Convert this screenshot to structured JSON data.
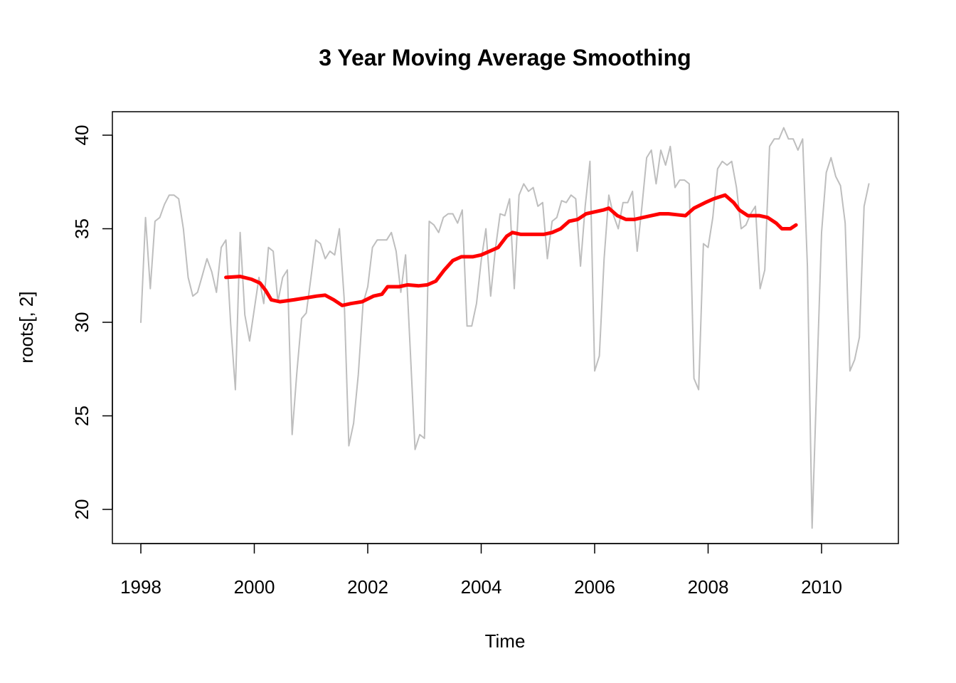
{
  "chart_data": {
    "type": "line",
    "title": "3 Year Moving Average Smoothing",
    "xlabel": "Time",
    "ylabel": "roots[, 2]",
    "xlim": [
      1998,
      2010.9
    ],
    "ylim": [
      19,
      40.3
    ],
    "x_ticks": [
      1998,
      2000,
      2002,
      2004,
      2006,
      2008,
      2010
    ],
    "y_ticks": [
      20,
      25,
      30,
      35,
      40
    ],
    "grid": false,
    "series": [
      {
        "name": "",
        "color": "#bebebe",
        "start": 1998.0,
        "step": 0.0833333,
        "values": [
          30.0,
          35.6,
          31.8,
          35.4,
          35.6,
          36.3,
          36.8,
          36.8,
          36.6,
          35.0,
          32.4,
          31.4,
          31.6,
          32.5,
          33.4,
          32.7,
          31.6,
          34.0,
          34.4,
          29.9,
          26.4,
          34.8,
          30.4,
          29.0,
          30.7,
          32.4,
          31.0,
          34.0,
          33.8,
          31.1,
          32.4,
          32.8,
          24.0,
          27.3,
          30.2,
          30.5,
          32.4,
          34.4,
          34.2,
          33.4,
          33.8,
          33.6,
          35.0,
          31.3,
          23.4,
          24.6,
          27.2,
          31.0,
          31.9,
          34.0,
          34.4,
          34.4,
          34.4,
          34.8,
          33.8,
          31.6,
          33.6,
          28.5,
          23.2,
          24.0,
          23.8,
          35.4,
          35.2,
          34.8,
          35.6,
          35.8,
          35.8,
          35.3,
          36.0,
          29.8,
          29.8,
          31.0,
          33.3,
          35.0,
          31.4,
          33.9,
          35.8,
          35.7,
          36.6,
          31.8,
          36.8,
          37.4,
          37.0,
          37.2,
          36.2,
          36.4,
          33.4,
          35.4,
          35.6,
          36.5,
          36.4,
          36.8,
          36.6,
          33.0,
          36.2,
          38.6,
          27.4,
          28.2,
          33.4,
          36.8,
          35.7,
          35.0,
          36.4,
          36.4,
          37.0,
          33.8,
          36.2,
          38.8,
          39.2,
          37.4,
          39.2,
          38.4,
          39.4,
          37.2,
          37.6,
          37.6,
          37.4,
          27.0,
          26.4,
          34.2,
          34.0,
          35.6,
          38.2,
          38.6,
          38.4,
          38.6,
          37.2,
          35.0,
          35.2,
          35.8,
          36.2,
          31.8,
          32.8,
          39.4,
          39.8,
          39.8,
          40.4,
          39.8,
          39.8,
          39.2,
          39.8,
          33.0,
          19.0,
          27.0,
          34.8,
          38.0,
          38.8,
          37.8,
          37.3,
          35.3,
          27.4,
          28.0,
          29.2,
          36.2,
          37.4
        ]
      },
      {
        "name": "",
        "color": "#ff0000",
        "points": [
          [
            1999.5,
            32.4
          ],
          [
            1999.75,
            32.45
          ],
          [
            1999.95,
            32.3
          ],
          [
            2000.1,
            32.1
          ],
          [
            2000.2,
            31.7
          ],
          [
            2000.3,
            31.2
          ],
          [
            2000.45,
            31.1
          ],
          [
            2000.7,
            31.2
          ],
          [
            2000.9,
            31.3
          ],
          [
            2001.1,
            31.4
          ],
          [
            2001.25,
            31.45
          ],
          [
            2001.4,
            31.2
          ],
          [
            2001.55,
            30.9
          ],
          [
            2001.7,
            31.0
          ],
          [
            2001.9,
            31.1
          ],
          [
            2002.1,
            31.4
          ],
          [
            2002.25,
            31.5
          ],
          [
            2002.35,
            31.9
          ],
          [
            2002.55,
            31.9
          ],
          [
            2002.7,
            32.0
          ],
          [
            2002.9,
            31.95
          ],
          [
            2003.05,
            32.0
          ],
          [
            2003.2,
            32.2
          ],
          [
            2003.35,
            32.8
          ],
          [
            2003.5,
            33.3
          ],
          [
            2003.65,
            33.5
          ],
          [
            2003.85,
            33.5
          ],
          [
            2004.0,
            33.6
          ],
          [
            2004.15,
            33.8
          ],
          [
            2004.3,
            34.0
          ],
          [
            2004.45,
            34.6
          ],
          [
            2004.55,
            34.8
          ],
          [
            2004.7,
            34.7
          ],
          [
            2004.9,
            34.7
          ],
          [
            2005.1,
            34.7
          ],
          [
            2005.25,
            34.8
          ],
          [
            2005.4,
            35.0
          ],
          [
            2005.55,
            35.4
          ],
          [
            2005.7,
            35.5
          ],
          [
            2005.85,
            35.8
          ],
          [
            2006.0,
            35.9
          ],
          [
            2006.15,
            36.0
          ],
          [
            2006.25,
            36.1
          ],
          [
            2006.4,
            35.7
          ],
          [
            2006.55,
            35.5
          ],
          [
            2006.7,
            35.5
          ],
          [
            2006.85,
            35.6
          ],
          [
            2007.0,
            35.7
          ],
          [
            2007.15,
            35.8
          ],
          [
            2007.3,
            35.8
          ],
          [
            2007.45,
            35.75
          ],
          [
            2007.6,
            35.7
          ],
          [
            2007.75,
            36.1
          ],
          [
            2007.95,
            36.4
          ],
          [
            2008.1,
            36.6
          ],
          [
            2008.2,
            36.7
          ],
          [
            2008.3,
            36.8
          ],
          [
            2008.45,
            36.4
          ],
          [
            2008.55,
            36.0
          ],
          [
            2008.7,
            35.7
          ],
          [
            2008.9,
            35.7
          ],
          [
            2009.05,
            35.6
          ],
          [
            2009.2,
            35.3
          ],
          [
            2009.3,
            35.0
          ],
          [
            2009.45,
            35.0
          ],
          [
            2009.55,
            35.2
          ]
        ]
      }
    ]
  }
}
